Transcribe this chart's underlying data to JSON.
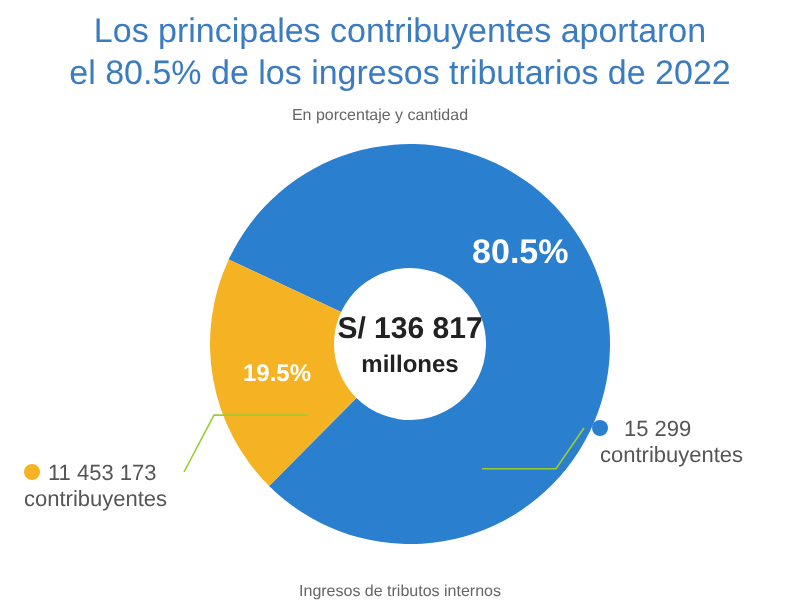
{
  "chart_data": {
    "type": "donut",
    "title": "Los principales contribuyentes aportaron el 80.5% de los ingresos tributarios de 2022",
    "subtitle": "En porcentaje y cantidad",
    "categories": [
      "15 299 contribuyentes",
      "11 453 173 contribuyentes"
    ],
    "values": [
      80.5,
      19.5
    ],
    "colors": [
      "#2a7fcf",
      "#f5b324"
    ],
    "value_labels": [
      "80.5%",
      "19.5%"
    ],
    "legend": "bottom",
    "annotations": [
      "S/ 136 817",
      "millones",
      "Ingresos de tributos internos"
    ]
  }
}
